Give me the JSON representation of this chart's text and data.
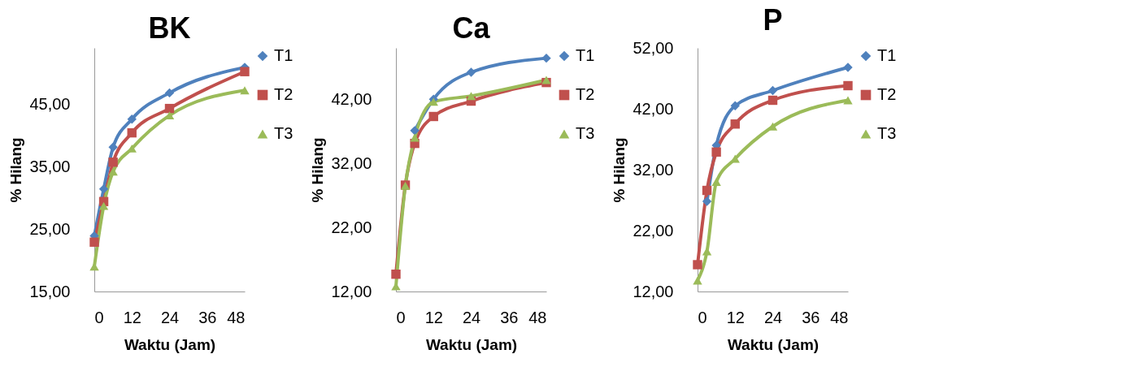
{
  "chart_data": [
    {
      "type": "line",
      "title": "BK",
      "xlabel": "Waktu (Jam)",
      "ylabel": "% Hilang",
      "x": [
        0,
        3,
        6,
        12,
        24,
        48
      ],
      "xlim": [
        0,
        48
      ],
      "xticks": [
        0,
        12,
        24,
        36,
        48
      ],
      "ylim": [
        15,
        54
      ],
      "yticks": [
        {
          "value": 15,
          "label": "15,00"
        },
        {
          "value": 25,
          "label": "25,00"
        },
        {
          "value": 35,
          "label": "35,00"
        },
        {
          "value": 45,
          "label": "45,00"
        }
      ],
      "grid": false,
      "legend": "right",
      "series": [
        {
          "name": "T1",
          "color": "#4f81bd",
          "marker": "diamond",
          "values": [
            23.9,
            31.4,
            38.1,
            42.6,
            46.8,
            50.9
          ]
        },
        {
          "name": "T2",
          "color": "#c0504d",
          "marker": "square",
          "values": [
            22.9,
            29.4,
            35.7,
            40.4,
            44.3,
            50.2
          ]
        },
        {
          "name": "T3",
          "color": "#9bbb59",
          "marker": "triangle",
          "values": [
            19.0,
            28.7,
            34.2,
            37.9,
            43.2,
            47.2
          ]
        }
      ]
    },
    {
      "type": "line",
      "title": "Ca",
      "xlabel": "Waktu (Jam)",
      "ylabel": "% Hilang",
      "x": [
        0,
        3,
        6,
        12,
        24,
        48
      ],
      "xlim": [
        0,
        48
      ],
      "xticks": [
        0,
        12,
        24,
        36,
        48
      ],
      "ylim": [
        12,
        50
      ],
      "yticks": [
        {
          "value": 12,
          "label": "12,00"
        },
        {
          "value": 22,
          "label": "22,00"
        },
        {
          "value": 32,
          "label": "32,00"
        },
        {
          "value": 42,
          "label": "42,00"
        }
      ],
      "grid": false,
      "legend": "right",
      "series": [
        {
          "name": "T1",
          "color": "#4f81bd",
          "marker": "diamond",
          "values": [
            null,
            null,
            37.1,
            42.0,
            46.2,
            48.4
          ]
        },
        {
          "name": "T2",
          "color": "#c0504d",
          "marker": "square",
          "values": [
            14.7,
            28.6,
            35.1,
            39.3,
            41.7,
            44.6
          ]
        },
        {
          "name": "T3",
          "color": "#9bbb59",
          "marker": "triangle",
          "values": [
            12.8,
            28.5,
            36.0,
            41.6,
            42.5,
            45.0
          ]
        }
      ]
    },
    {
      "type": "line",
      "title": "P",
      "xlabel": "Waktu (Jam)",
      "ylabel": "% Hilang",
      "x": [
        0,
        3,
        6,
        12,
        24,
        48
      ],
      "xlim": [
        0,
        48
      ],
      "xticks": [
        0,
        12,
        24,
        36,
        48
      ],
      "ylim": [
        12,
        52
      ],
      "yticks": [
        {
          "value": 12,
          "label": "12,00"
        },
        {
          "value": 22,
          "label": "22,00"
        },
        {
          "value": 32,
          "label": "32,00"
        },
        {
          "value": 42,
          "label": "42,00"
        },
        {
          "value": 52,
          "label": "52,00"
        }
      ],
      "grid": false,
      "legend": "right",
      "series": [
        {
          "name": "T1",
          "color": "#4f81bd",
          "marker": "diamond",
          "values": [
            null,
            26.8,
            36.0,
            42.5,
            45.0,
            48.8
          ]
        },
        {
          "name": "T2",
          "color": "#c0504d",
          "marker": "square",
          "values": [
            16.4,
            28.6,
            34.9,
            39.5,
            43.4,
            45.8
          ]
        },
        {
          "name": "T3",
          "color": "#9bbb59",
          "marker": "triangle",
          "values": [
            13.8,
            18.6,
            30.0,
            33.8,
            39.1,
            43.4
          ]
        }
      ]
    }
  ]
}
